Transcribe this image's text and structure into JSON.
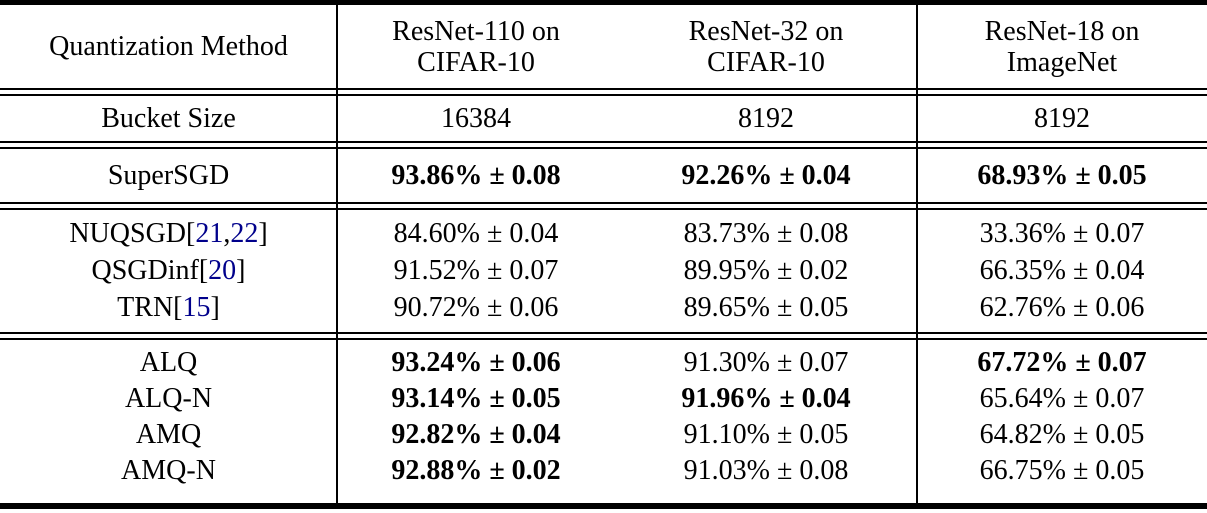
{
  "header": {
    "method_column": "Quantization Method",
    "columns": [
      {
        "line1": "ResNet-110 on",
        "line2": "CIFAR-10"
      },
      {
        "line1": "ResNet-32 on",
        "line2": "CIFAR-10"
      },
      {
        "line1": "ResNet-18 on",
        "line2": "ImageNet"
      }
    ]
  },
  "bucket_row": {
    "label": "Bucket Size",
    "values": [
      "16384",
      "8192",
      "8192"
    ]
  },
  "baseline_row": {
    "method": "SuperSGD",
    "values": [
      "93.86% ± 0.08",
      "92.26% ± 0.04",
      "68.93% ± 0.05"
    ]
  },
  "prior_rows": [
    {
      "method": "NUQSGD",
      "cite_open": " [",
      "citations": [
        "21",
        "22"
      ],
      "cite_sep": ", ",
      "cite_close": "]",
      "values": [
        "84.60% ± 0.04",
        "83.73% ± 0.08",
        "33.36% ± 0.07"
      ]
    },
    {
      "method": "QSGDinf",
      "cite_open": " [",
      "citations": [
        "20"
      ],
      "cite_close": "]",
      "values": [
        "91.52% ± 0.07",
        "89.95% ± 0.02",
        "66.35% ± 0.04"
      ]
    },
    {
      "method": "TRN",
      "cite_open": " [",
      "citations": [
        "15"
      ],
      "cite_close": "]",
      "values": [
        "90.72% ± 0.06",
        "89.65% ± 0.05",
        "62.76% ± 0.06"
      ]
    }
  ],
  "our_rows": [
    {
      "method": "ALQ",
      "values": [
        "93.24% ± 0.06",
        "91.30% ± 0.07",
        "67.72% ± 0.07"
      ]
    },
    {
      "method": "ALQ-N",
      "values": [
        "93.14% ± 0.05",
        "91.96% ± 0.04",
        "65.64% ± 0.07"
      ]
    },
    {
      "method": "AMQ",
      "values": [
        "92.82% ± 0.04",
        "91.10% ± 0.05",
        "64.82% ± 0.05"
      ]
    },
    {
      "method": "AMQ-N",
      "values": [
        "92.88% ± 0.02",
        "91.03% ± 0.08",
        "66.75% ± 0.05"
      ]
    }
  ],
  "colors": {
    "citation_link": "#00008b",
    "text": "#000000",
    "rule": "#000000",
    "background": "#ffffff"
  }
}
